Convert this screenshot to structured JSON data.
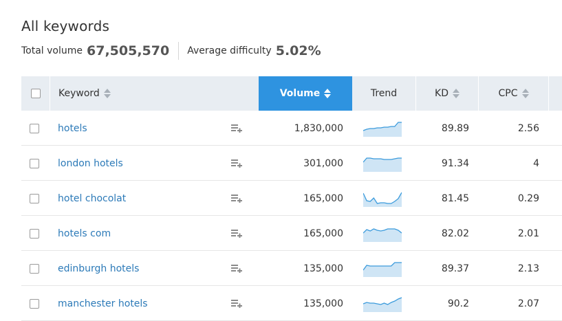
{
  "title": "All keywords",
  "summary": {
    "total_volume_label": "Total volume",
    "total_volume_value": "67,505,570",
    "avg_difficulty_label": "Average difficulty",
    "avg_difficulty_value": "5.02%"
  },
  "columns": {
    "keyword": "Keyword",
    "volume": "Volume",
    "trend": "Trend",
    "kd": "KD",
    "cpc": "CPC"
  },
  "colors": {
    "accent": "#2e93e0",
    "link": "#2c7ab8",
    "header_bg": "#e8edf2",
    "trend_fill": "#cfe5f5",
    "trend_line": "#3b9bdc"
  },
  "icons": {
    "add_to_list": "add-to-list-icon",
    "sort": "sort-arrows-icon"
  },
  "rows": [
    {
      "keyword": "hotels",
      "volume": "1,830,000",
      "kd": "89.89",
      "cpc": "2.56",
      "trend": [
        0.35,
        0.45,
        0.5,
        0.5,
        0.55,
        0.55,
        0.6,
        0.6,
        0.65,
        0.65,
        0.95,
        0.95
      ]
    },
    {
      "keyword": "london hotels",
      "volume": "301,000",
      "kd": "91.34",
      "cpc": "4",
      "trend": [
        0.6,
        0.9,
        0.9,
        0.85,
        0.85,
        0.85,
        0.8,
        0.8,
        0.8,
        0.85,
        0.9,
        0.9
      ]
    },
    {
      "keyword": "hotel chocolat",
      "volume": "165,000",
      "kd": "81.45",
      "cpc": "0.29",
      "trend": [
        0.9,
        0.35,
        0.3,
        0.55,
        0.15,
        0.2,
        0.2,
        0.15,
        0.15,
        0.3,
        0.5,
        0.95
      ]
    },
    {
      "keyword": "hotels com",
      "volume": "165,000",
      "kd": "82.02",
      "cpc": "2.01",
      "trend": [
        0.55,
        0.8,
        0.7,
        0.85,
        0.75,
        0.7,
        0.75,
        0.85,
        0.85,
        0.85,
        0.75,
        0.55
      ]
    },
    {
      "keyword": "edinburgh hotels",
      "volume": "135,000",
      "kd": "89.37",
      "cpc": "2.13",
      "trend": [
        0.4,
        0.75,
        0.7,
        0.7,
        0.7,
        0.7,
        0.7,
        0.7,
        0.7,
        0.95,
        0.95,
        0.95
      ]
    },
    {
      "keyword": "manchester hotels",
      "volume": "135,000",
      "kd": "90.2",
      "cpc": "2.07",
      "trend": [
        0.5,
        0.6,
        0.55,
        0.55,
        0.5,
        0.45,
        0.55,
        0.45,
        0.6,
        0.7,
        0.85,
        0.95
      ]
    }
  ]
}
